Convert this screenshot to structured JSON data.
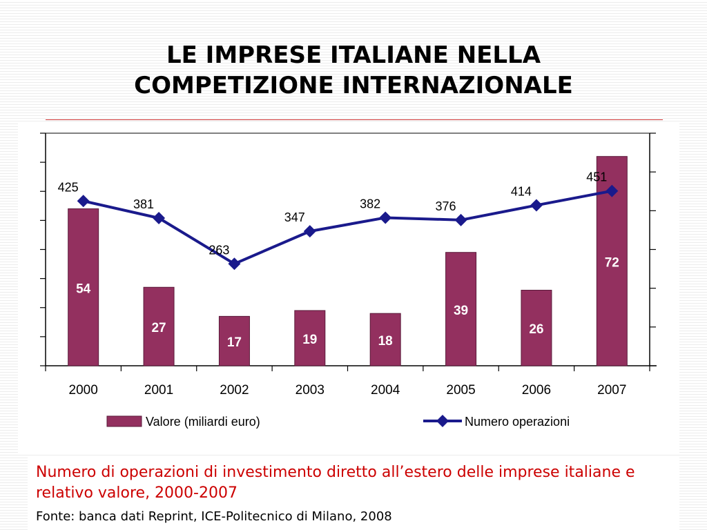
{
  "title": {
    "line1": "LE IMPRESE ITALIANE NELLA",
    "line2": "COMPETIZIONE INTERNAZIONALE"
  },
  "caption": "Numero di operazioni di investimento diretto all’estero delle imprese italiane e relativo valore, 2000-2007",
  "source": "Fonte: banca dati Reprint, ICE-Politecnico di Milano, 2008",
  "colors": {
    "bar": "#93305f",
    "line": "#1a1a8c",
    "caption": "#cc0000",
    "rule": "#cc3333"
  },
  "chart_data": {
    "type": "bar",
    "categories": [
      "2000",
      "2001",
      "2002",
      "2003",
      "2004",
      "2005",
      "2006",
      "2007"
    ],
    "series": [
      {
        "name": "Valore (miliardi euro)",
        "type": "bar",
        "axis": "left",
        "values": [
          54,
          27,
          17,
          19,
          18,
          39,
          26,
          72
        ]
      },
      {
        "name": "Numero operazioni",
        "type": "line",
        "axis": "right",
        "values": [
          425,
          381,
          263,
          347,
          382,
          376,
          414,
          451
        ]
      }
    ],
    "ylim_left": [
      0,
      80
    ],
    "ylim_right": [
      0,
      600
    ],
    "legend": "bottom",
    "grid": false
  }
}
